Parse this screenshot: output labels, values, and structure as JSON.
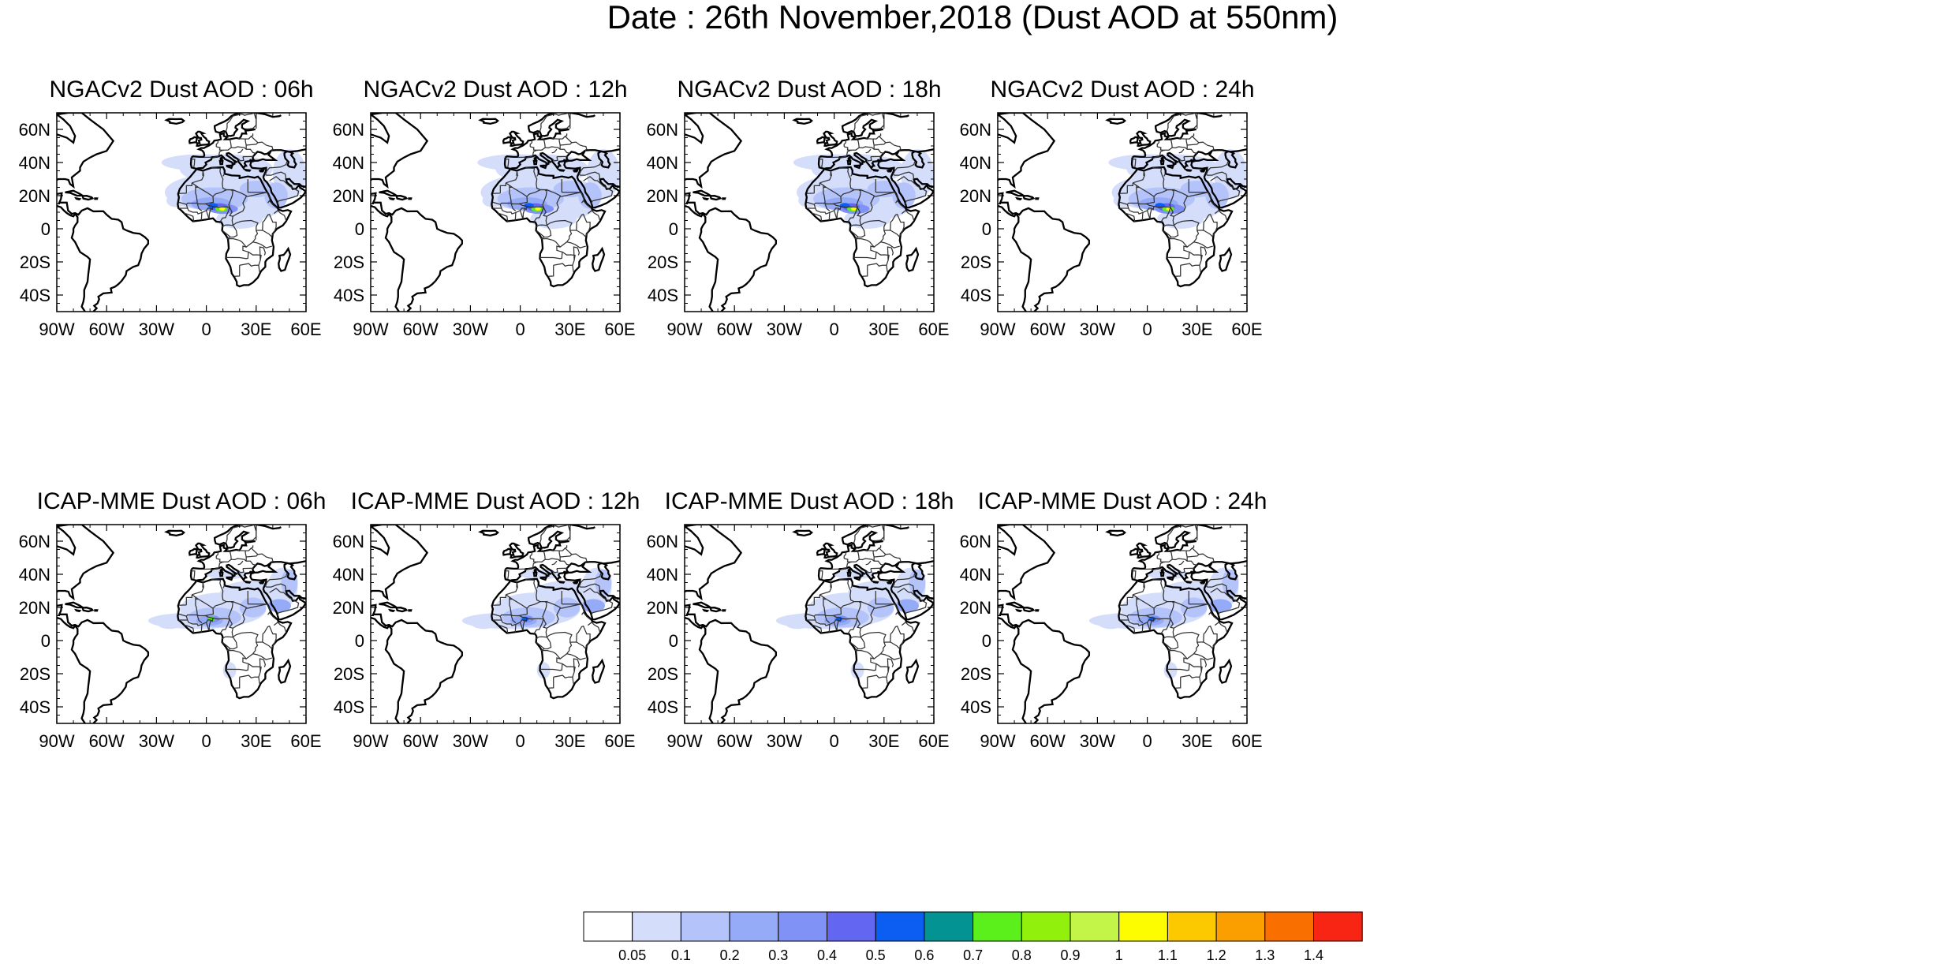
{
  "title": "Date : 26th November,2018 (Dust AOD at 550nm)",
  "panels": [
    {
      "title": "NGACv2 Dust AOD : 06h"
    },
    {
      "title": "NGACv2 Dust AOD : 12h"
    },
    {
      "title": "NGACv2 Dust AOD : 18h"
    },
    {
      "title": "NGACv2 Dust AOD : 24h"
    },
    {
      "title": "ICAP-MME Dust AOD : 06h"
    },
    {
      "title": "ICAP-MME Dust AOD : 12h"
    },
    {
      "title": "ICAP-MME Dust AOD : 18h"
    },
    {
      "title": "ICAP-MME Dust AOD : 24h"
    }
  ],
  "map_extent": {
    "lon": [
      -90,
      60
    ],
    "lat": [
      -50,
      70
    ]
  },
  "x_ticks": [
    {
      "value": -90,
      "label": "90W"
    },
    {
      "value": -60,
      "label": "60W"
    },
    {
      "value": -30,
      "label": "30W"
    },
    {
      "value": 0,
      "label": "0"
    },
    {
      "value": 30,
      "label": "30E"
    },
    {
      "value": 60,
      "label": "60E"
    }
  ],
  "y_ticks": [
    {
      "value": 60,
      "label": "60N"
    },
    {
      "value": 40,
      "label": "40N"
    },
    {
      "value": 20,
      "label": "20N"
    },
    {
      "value": 0,
      "label": "0"
    },
    {
      "value": -20,
      "label": "20S"
    },
    {
      "value": -40,
      "label": "40S"
    }
  ],
  "colorbar": {
    "colors": [
      "#ffffff",
      "#d4ddfa",
      "#b4c3f9",
      "#96abf8",
      "#8092f6",
      "#6366f1",
      "#0b5ef1",
      "#039393",
      "#5bf01b",
      "#92f00d",
      "#c2f548",
      "#fdfd00",
      "#fcc800",
      "#fb9e00",
      "#fa7000",
      "#f82414"
    ],
    "labels": [
      "0.05",
      "0.1",
      "0.2",
      "0.3",
      "0.4",
      "0.5",
      "0.6",
      "0.7",
      "0.8",
      "0.9",
      "1",
      "1.1",
      "1.2",
      "1.3",
      "1.4"
    ]
  }
}
